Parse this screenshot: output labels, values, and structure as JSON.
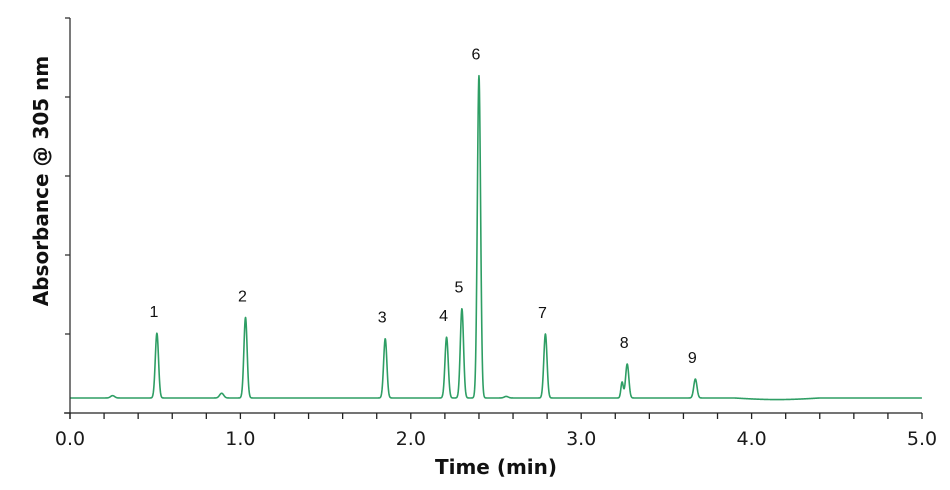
{
  "chart_data": {
    "type": "line",
    "title": "",
    "xlabel": "Time (min)",
    "ylabel": "Absorbance @ 305 nm",
    "xlim": [
      0.0,
      5.0
    ],
    "ylim": [
      0,
      5
    ],
    "x_ticks": [
      "0.0",
      "1.0",
      "2.0",
      "3.0",
      "4.0",
      "5.0"
    ],
    "x_minor_step": 0.2,
    "y_ticks_count": 6,
    "y_tick_labels_shown": false,
    "grid": false,
    "legend": null,
    "line_color": "#2e9e64",
    "baseline": 0.19,
    "series": [
      {
        "name": "Chromatogram",
        "peaks": [
          {
            "label": "1",
            "time": 0.51,
            "height": 0.82
          },
          {
            "label": "2",
            "time": 1.03,
            "height": 1.02
          },
          {
            "label": "3",
            "time": 1.85,
            "height": 0.75
          },
          {
            "label": "4",
            "time": 2.21,
            "height": 0.77
          },
          {
            "label": "5",
            "time": 2.3,
            "height": 1.13
          },
          {
            "label": "6",
            "time": 2.4,
            "height": 4.08
          },
          {
            "label": "7",
            "time": 2.79,
            "height": 0.81
          },
          {
            "label": "8",
            "time": 3.27,
            "height": 0.43,
            "shoulder": {
              "time": 3.24,
              "height": 0.2
            }
          },
          {
            "label": "9",
            "time": 3.67,
            "height": 0.24
          }
        ],
        "minor_features": [
          {
            "time": 0.25,
            "height": 0.03
          },
          {
            "time": 0.89,
            "height": 0.06
          },
          {
            "time": 2.56,
            "height": 0.02
          }
        ]
      }
    ],
    "annotations": [
      "1",
      "2",
      "3",
      "4",
      "5",
      "6",
      "7",
      "8",
      "9"
    ]
  }
}
